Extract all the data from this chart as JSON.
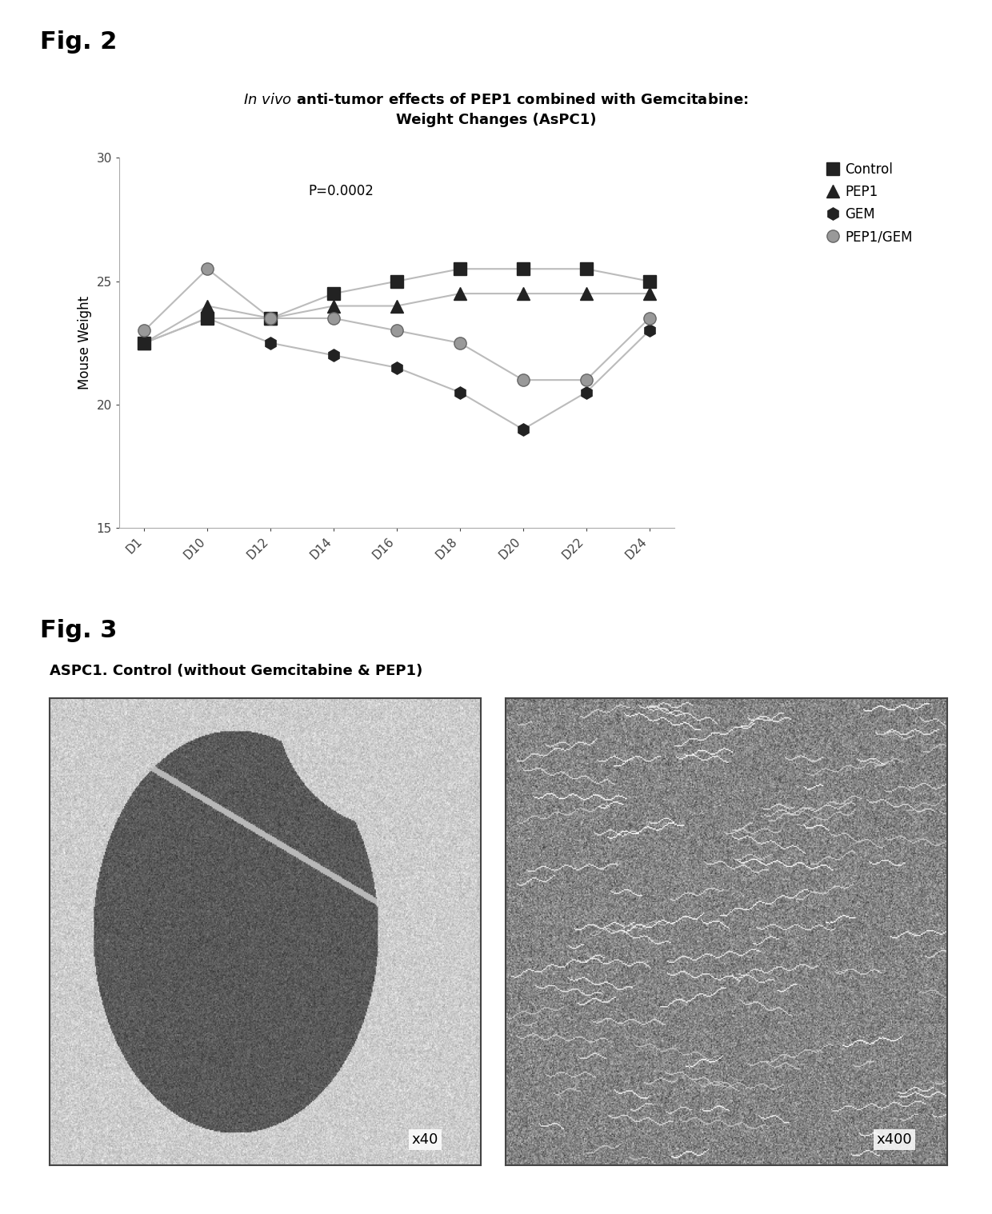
{
  "fig2_label": "Fig. 2",
  "fig3_label": "Fig. 3",
  "title_line1_italic": "In vivo",
  "title_line1_rest": " anti-tumor effects of PEP1 combined with Gemcitabine:",
  "title_line2": "Weight Changes (AsPC1)",
  "ylabel": "Mouse Weight",
  "pvalue_text": "P=0.0002",
  "ylim": [
    15,
    30
  ],
  "yticks": [
    15,
    20,
    25,
    30
  ],
  "x_labels": [
    "D1",
    "D10",
    "D12",
    "D14",
    "D16",
    "D18",
    "D20",
    "D22",
    "D24"
  ],
  "control_data": [
    22.5,
    23.5,
    23.5,
    24.5,
    25.0,
    25.5,
    25.5,
    25.5,
    25.0
  ],
  "pep1_data": [
    22.5,
    24.0,
    23.5,
    24.0,
    24.0,
    24.5,
    24.5,
    24.5,
    24.5
  ],
  "gem_data": [
    22.5,
    23.5,
    22.5,
    22.0,
    21.5,
    20.5,
    19.0,
    20.5,
    23.0
  ],
  "pep1gem_data": [
    23.0,
    25.5,
    23.5,
    23.5,
    23.0,
    22.5,
    21.0,
    21.0,
    23.5
  ],
  "dark_color": "#222222",
  "gray_color": "#999999",
  "line_color": "#bbbbbb",
  "background_color": "#ffffff",
  "fig3_subtitle": "ASPC1. Control (without Gemcitabine & PEP1)"
}
